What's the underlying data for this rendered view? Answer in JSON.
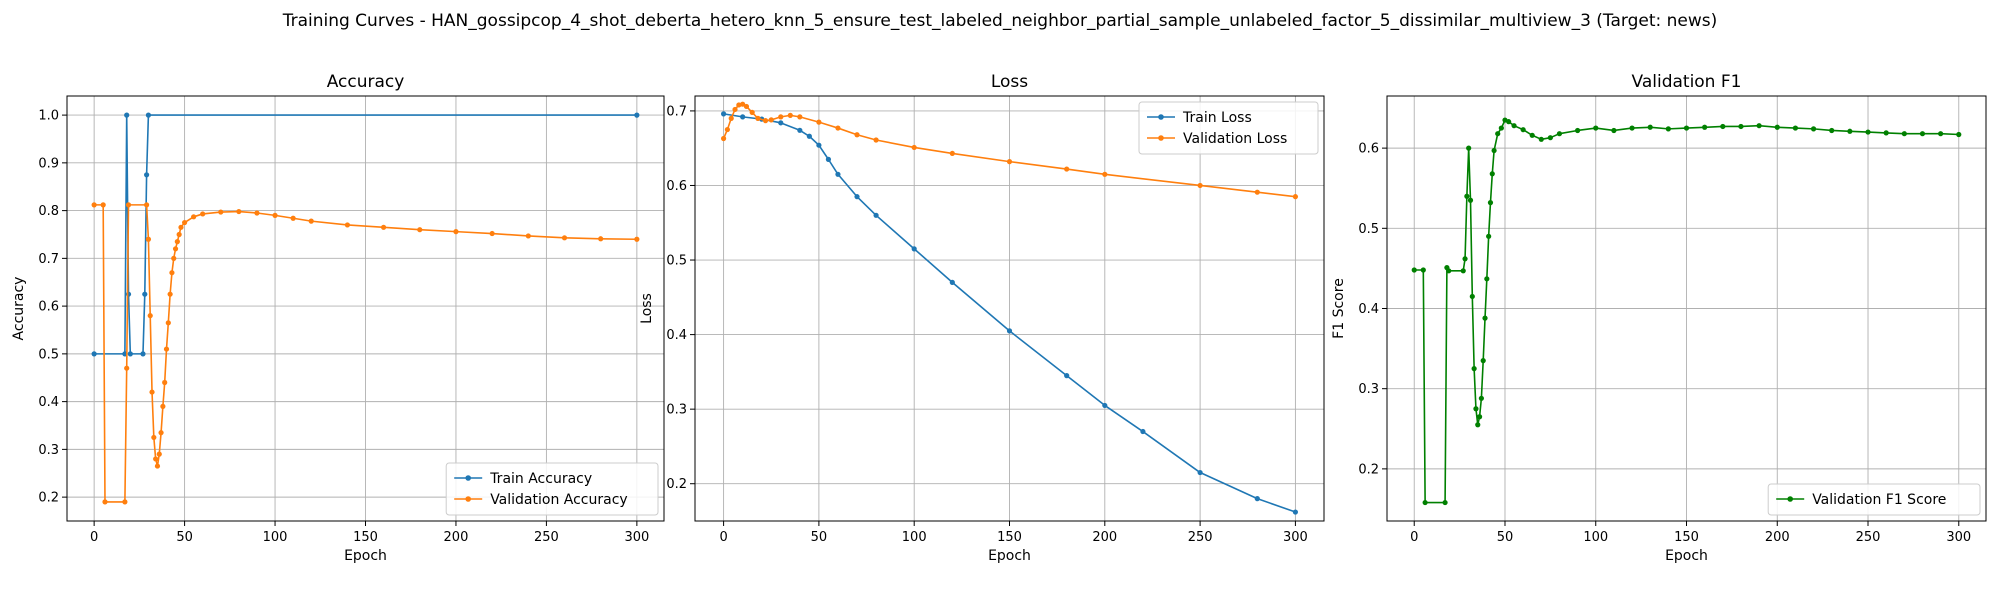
{
  "figure": {
    "suptitle": "Training Curves - HAN_gossipcop_4_shot_deberta_hetero_knn_5_ensure_test_labeled_neighbor_partial_sample_unlabeled_factor_5_dissimilar_multiview_3 (Target: news)"
  },
  "chart_data": [
    {
      "type": "line",
      "title": "Accuracy",
      "xlabel": "Epoch",
      "ylabel": "Accuracy",
      "xlim": [
        -15,
        315
      ],
      "ylim": [
        0.15,
        1.04
      ],
      "xticks": [
        0,
        50,
        100,
        150,
        200,
        250,
        300
      ],
      "yticks": [
        0.2,
        0.3,
        0.4,
        0.5,
        0.6,
        0.7,
        0.8,
        0.9,
        1.0
      ],
      "grid": true,
      "legend": "lower-right",
      "series": [
        {
          "name": "Train Accuracy",
          "color": "#1f77b4",
          "points": [
            [
              0,
              0.5
            ],
            [
              17,
              0.5
            ],
            [
              18,
              1.0
            ],
            [
              19,
              0.625
            ],
            [
              20,
              0.5
            ],
            [
              27,
              0.5
            ],
            [
              28,
              0.625
            ],
            [
              29,
              0.875
            ],
            [
              30,
              1.0
            ],
            [
              300,
              1.0
            ]
          ]
        },
        {
          "name": "Validation Accuracy",
          "color": "#ff7f0e",
          "points": [
            [
              0,
              0.812
            ],
            [
              5,
              0.812
            ],
            [
              6,
              0.19
            ],
            [
              17,
              0.19
            ],
            [
              18,
              0.47
            ],
            [
              19,
              0.812
            ],
            [
              29,
              0.812
            ],
            [
              30,
              0.74
            ],
            [
              31,
              0.58
            ],
            [
              32,
              0.42
            ],
            [
              33,
              0.325
            ],
            [
              34,
              0.28
            ],
            [
              35,
              0.265
            ],
            [
              36,
              0.29
            ],
            [
              37,
              0.335
            ],
            [
              38,
              0.39
            ],
            [
              39,
              0.44
            ],
            [
              40,
              0.51
            ],
            [
              41,
              0.565
            ],
            [
              42,
              0.625
            ],
            [
              43,
              0.67
            ],
            [
              44,
              0.7
            ],
            [
              45,
              0.72
            ],
            [
              46,
              0.735
            ],
            [
              47,
              0.75
            ],
            [
              48,
              0.765
            ],
            [
              50,
              0.775
            ],
            [
              55,
              0.787
            ],
            [
              60,
              0.793
            ],
            [
              70,
              0.797
            ],
            [
              80,
              0.798
            ],
            [
              90,
              0.795
            ],
            [
              100,
              0.79
            ],
            [
              110,
              0.784
            ],
            [
              120,
              0.778
            ],
            [
              140,
              0.77
            ],
            [
              160,
              0.765
            ],
            [
              180,
              0.76
            ],
            [
              200,
              0.756
            ],
            [
              220,
              0.752
            ],
            [
              240,
              0.747
            ],
            [
              260,
              0.743
            ],
            [
              280,
              0.741
            ],
            [
              300,
              0.74
            ]
          ]
        }
      ]
    },
    {
      "type": "line",
      "title": "Loss",
      "xlabel": "Epoch",
      "ylabel": "Loss",
      "xlim": [
        -15,
        315
      ],
      "ylim": [
        0.15,
        0.72
      ],
      "xticks": [
        0,
        50,
        100,
        150,
        200,
        250,
        300
      ],
      "yticks": [
        0.2,
        0.3,
        0.4,
        0.5,
        0.6,
        0.7
      ],
      "grid": true,
      "legend": "top-right",
      "series": [
        {
          "name": "Train Loss",
          "color": "#1f77b4",
          "points": [
            [
              0,
              0.696
            ],
            [
              10,
              0.692
            ],
            [
              20,
              0.689
            ],
            [
              30,
              0.684
            ],
            [
              40,
              0.674
            ],
            [
              45,
              0.666
            ],
            [
              50,
              0.654
            ],
            [
              55,
              0.635
            ],
            [
              60,
              0.615
            ],
            [
              70,
              0.585
            ],
            [
              80,
              0.56
            ],
            [
              100,
              0.515
            ],
            [
              120,
              0.47
            ],
            [
              150,
              0.405
            ],
            [
              180,
              0.345
            ],
            [
              200,
              0.305
            ],
            [
              220,
              0.27
            ],
            [
              250,
              0.215
            ],
            [
              280,
              0.18
            ],
            [
              300,
              0.162
            ]
          ]
        },
        {
          "name": "Validation Loss",
          "color": "#ff7f0e",
          "points": [
            [
              0,
              0.663
            ],
            [
              2,
              0.675
            ],
            [
              4,
              0.69
            ],
            [
              6,
              0.702
            ],
            [
              8,
              0.708
            ],
            [
              10,
              0.709
            ],
            [
              12,
              0.706
            ],
            [
              15,
              0.698
            ],
            [
              18,
              0.69
            ],
            [
              22,
              0.687
            ],
            [
              25,
              0.688
            ],
            [
              30,
              0.692
            ],
            [
              35,
              0.694
            ],
            [
              40,
              0.692
            ],
            [
              50,
              0.685
            ],
            [
              60,
              0.677
            ],
            [
              70,
              0.668
            ],
            [
              80,
              0.661
            ],
            [
              100,
              0.651
            ],
            [
              120,
              0.643
            ],
            [
              150,
              0.632
            ],
            [
              180,
              0.622
            ],
            [
              200,
              0.615
            ],
            [
              250,
              0.6
            ],
            [
              280,
              0.591
            ],
            [
              300,
              0.585
            ]
          ]
        }
      ]
    },
    {
      "type": "line",
      "title": "Validation F1",
      "xlabel": "Epoch",
      "ylabel": "F1 Score",
      "xlim": [
        -15,
        315
      ],
      "ylim": [
        0.135,
        0.665
      ],
      "xticks": [
        0,
        50,
        100,
        150,
        200,
        250,
        300
      ],
      "yticks": [
        0.2,
        0.3,
        0.4,
        0.5,
        0.6
      ],
      "grid": true,
      "legend": "lower-right",
      "series": [
        {
          "name": "Validation F1 Score",
          "color": "#008000",
          "points": [
            [
              0,
              0.448
            ],
            [
              5,
              0.448
            ],
            [
              6,
              0.158
            ],
            [
              17,
              0.158
            ],
            [
              18,
              0.451
            ],
            [
              19,
              0.447
            ],
            [
              27,
              0.447
            ],
            [
              28,
              0.462
            ],
            [
              29,
              0.54
            ],
            [
              30,
              0.6
            ],
            [
              31,
              0.535
            ],
            [
              32,
              0.415
            ],
            [
              33,
              0.325
            ],
            [
              34,
              0.275
            ],
            [
              35,
              0.255
            ],
            [
              36,
              0.265
            ],
            [
              37,
              0.288
            ],
            [
              38,
              0.335
            ],
            [
              39,
              0.388
            ],
            [
              40,
              0.437
            ],
            [
              41,
              0.49
            ],
            [
              42,
              0.532
            ],
            [
              43,
              0.568
            ],
            [
              44,
              0.597
            ],
            [
              46,
              0.618
            ],
            [
              48,
              0.625
            ],
            [
              50,
              0.635
            ],
            [
              52,
              0.633
            ],
            [
              55,
              0.628
            ],
            [
              60,
              0.623
            ],
            [
              65,
              0.616
            ],
            [
              70,
              0.611
            ],
            [
              75,
              0.613
            ],
            [
              80,
              0.618
            ],
            [
              90,
              0.622
            ],
            [
              100,
              0.625
            ],
            [
              110,
              0.622
            ],
            [
              120,
              0.625
            ],
            [
              130,
              0.626
            ],
            [
              140,
              0.624
            ],
            [
              150,
              0.625
            ],
            [
              160,
              0.626
            ],
            [
              170,
              0.627
            ],
            [
              180,
              0.627
            ],
            [
              190,
              0.628
            ],
            [
              200,
              0.626
            ],
            [
              210,
              0.625
            ],
            [
              220,
              0.624
            ],
            [
              230,
              0.622
            ],
            [
              240,
              0.621
            ],
            [
              250,
              0.62
            ],
            [
              260,
              0.619
            ],
            [
              270,
              0.618
            ],
            [
              280,
              0.618
            ],
            [
              290,
              0.618
            ],
            [
              300,
              0.617
            ]
          ]
        }
      ]
    }
  ]
}
